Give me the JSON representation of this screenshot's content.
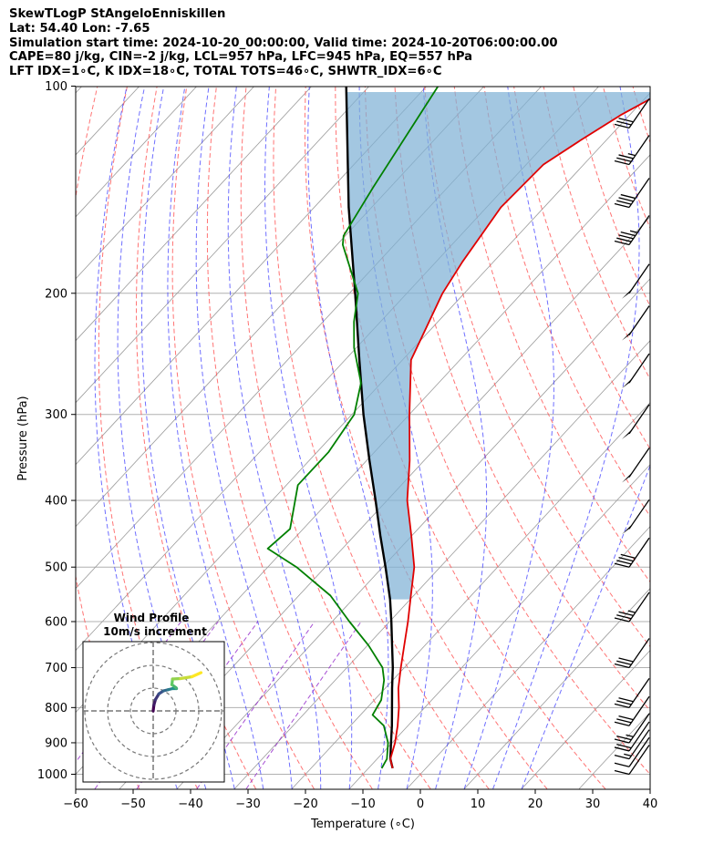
{
  "header": {
    "line1": "SkewTLogP StAngeloEnniskillen",
    "line2": "Lat: 54.40   Lon: -7.65",
    "line3": "Simulation start time: 2024-10-20_00:00:00, Valid time: 2024-10-20T06:00:00.00",
    "line4": "CAPE=80 j/kg, CIN=-2 j/kg, LCL=957 hPa, LFC=945 hPa, EQ=557 hPa",
    "line5": "LFT IDX=1∘C, K IDX=18∘C, TOTAL TOTS=46∘C, SHWTR_IDX=6∘C"
  },
  "chart_data": {
    "type": "line",
    "title": "SkewTLogP StAngeloEnniskillen",
    "xlabel": "Temperature (∘C)",
    "ylabel": "Pressure (hPa)",
    "xlim": [
      -60,
      40
    ],
    "ylim": [
      1050,
      100
    ],
    "y_scale": "log",
    "skew": true,
    "xticks": [
      -60,
      -50,
      -40,
      -30,
      -20,
      -10,
      0,
      10,
      20,
      30,
      40
    ],
    "yticks": [
      1000,
      900,
      800,
      700,
      600,
      500,
      400,
      300,
      200,
      100
    ],
    "grid": true,
    "colors": {
      "temperature": "#e00000",
      "dewpoint": "#008000",
      "parcel": "#000000",
      "cape_fill": "#7fb1d6",
      "dry_adiabat": "#ff5c5c",
      "moist_adiabat": "#3f3fff",
      "mixing_ratio": "#9933cc",
      "isotherm": "#888888"
    },
    "series": [
      {
        "name": "Temperature",
        "pressure": [
          980,
          950,
          900,
          850,
          800,
          750,
          700,
          650,
          600,
          550,
          500,
          450,
          400,
          350,
          300,
          250,
          200,
          180,
          150,
          130,
          120,
          110,
          100
        ],
        "values": [
          14.2,
          12.3,
          10.5,
          8.2,
          5.5,
          2.3,
          -0.6,
          -3.6,
          -6.8,
          -10.5,
          -14.5,
          -20.1,
          -26.5,
          -32.5,
          -40.0,
          -48.5,
          -53.8,
          -55.4,
          -57.5,
          -57.0,
          -54.5,
          -51.5,
          -47.0
        ]
      },
      {
        "name": "Dewpoint",
        "pressure": [
          980,
          950,
          900,
          850,
          820,
          780,
          730,
          700,
          650,
          600,
          550,
          500,
          470,
          440,
          380,
          340,
          300,
          270,
          240,
          220,
          200,
          170,
          165,
          140,
          100
        ],
        "values": [
          12.3,
          11.7,
          9.3,
          5.8,
          2.1,
          1.2,
          -1.5,
          -3.8,
          -9.8,
          -17.0,
          -24.5,
          -35.0,
          -43.0,
          -42.3,
          -48.0,
          -48.0,
          -49.6,
          -53.5,
          -60.4,
          -64.6,
          -68.5,
          -79.0,
          -80.3,
          -83.0,
          -88.0
        ]
      },
      {
        "name": "Parcel",
        "pressure": [
          980,
          950,
          900,
          850,
          800,
          750,
          700,
          650,
          600,
          557,
          500,
          450,
          400,
          350,
          300,
          250,
          200,
          150,
          100
        ],
        "values": [
          14.2,
          12.3,
          9.8,
          7.2,
          4.3,
          1.2,
          -2.0,
          -5.7,
          -9.7,
          -13.5,
          -19.5,
          -25.5,
          -32.0,
          -39.5,
          -48.0,
          -57.5,
          -69.0,
          -84.0,
          -104.0
        ]
      }
    ],
    "cape_region": {
      "from_hpa": 557,
      "to_hpa": 100
    },
    "wind_barbs": {
      "pressure": [
        1000,
        975,
        950,
        925,
        900,
        850,
        800,
        700,
        600,
        500,
        440,
        370,
        320,
        270,
        230,
        200,
        170,
        150,
        130,
        115
      ],
      "speed_kt": [
        10,
        12,
        15,
        20,
        25,
        30,
        30,
        30,
        35,
        40,
        50,
        50,
        50,
        50,
        50,
        50,
        45,
        40,
        35,
        30
      ]
    },
    "hodograph": {
      "title": "Wind Profile",
      "subtitle": "10m/s increment",
      "rings": [
        10,
        20,
        30
      ],
      "u": [
        0,
        0.3,
        1.0,
        2.5,
        4.5,
        6.5,
        8.5,
        10.2,
        10.0,
        8.2,
        8.5,
        12.0,
        17.0,
        21.0
      ],
      "v": [
        0,
        2.5,
        5.0,
        7.5,
        8.8,
        9.3,
        9.8,
        9.8,
        10.2,
        11.5,
        14.0,
        14.2,
        15.0,
        16.8
      ]
    }
  }
}
